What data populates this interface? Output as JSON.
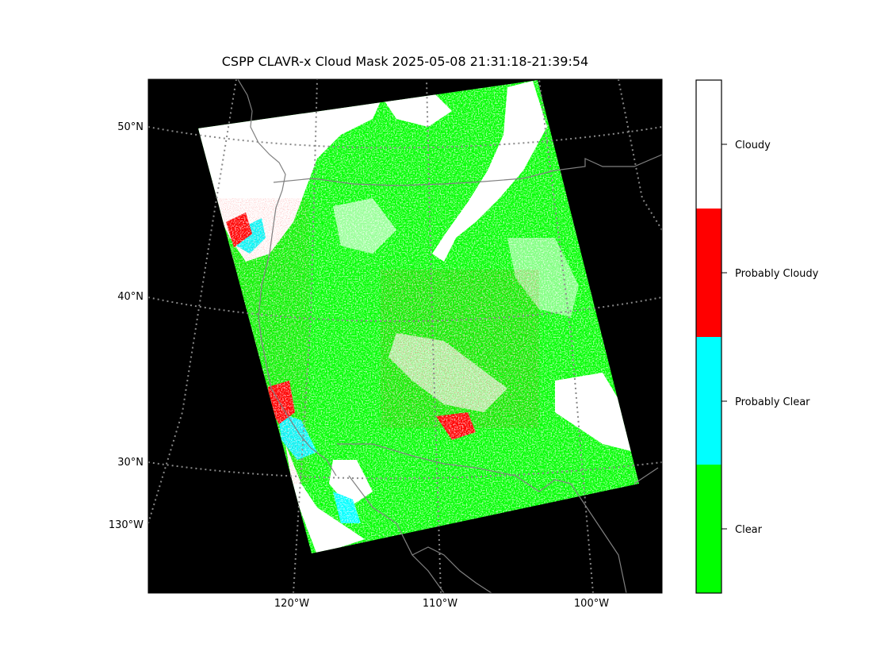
{
  "title": "CSPP CLAVR-x Cloud Mask 2025-05-08 21:31:18-21:39:54",
  "lat_labels": [
    "50°N",
    "40°N",
    "30°N"
  ],
  "lon_labels": [
    "120°W",
    "110°W",
    "100°W"
  ],
  "left_extra_label": "130°W",
  "legend": {
    "classes": [
      {
        "label": "Cloudy",
        "color": "#ffffff"
      },
      {
        "label": "Probably Cloudy",
        "color": "#ff0000"
      },
      {
        "label": "Probably Clear",
        "color": "#00ffff"
      },
      {
        "label": "Clear",
        "color": "#00ff00"
      }
    ]
  },
  "colors": {
    "background": "#000000",
    "gridline": "#888888",
    "coastline": "#808080"
  }
}
